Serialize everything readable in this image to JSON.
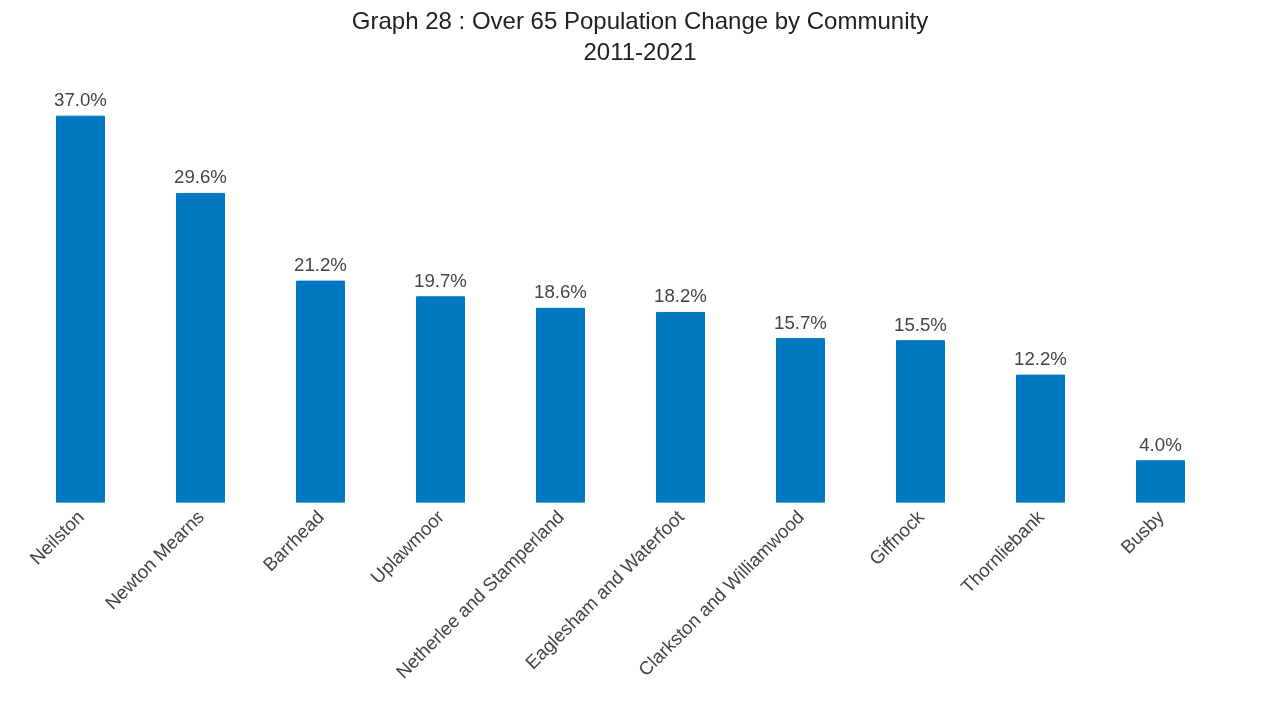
{
  "chart_data": {
    "type": "bar",
    "title": "Graph 28 : Over 65 Population Change by Community\n2011-2021",
    "categories": [
      "Neilston",
      "Newton Mearns",
      "Barrhead",
      "Uplawmoor",
      "Netherlee and Stamperland",
      "Eaglesham and Waterfoot",
      "Clarkston and Williamwood",
      "Giffnock",
      "Thornliebank",
      "Busby"
    ],
    "values": [
      37.0,
      29.6,
      21.2,
      19.7,
      18.6,
      18.2,
      15.7,
      15.5,
      12.2,
      4.0
    ],
    "value_labels": [
      "37.0%",
      "29.6%",
      "21.2%",
      "19.7%",
      "18.6%",
      "18.2%",
      "15.7%",
      "15.5%",
      "12.2%",
      "4.0%"
    ],
    "color": "#0079c1",
    "grid": false,
    "tick_labels": "x"
  }
}
